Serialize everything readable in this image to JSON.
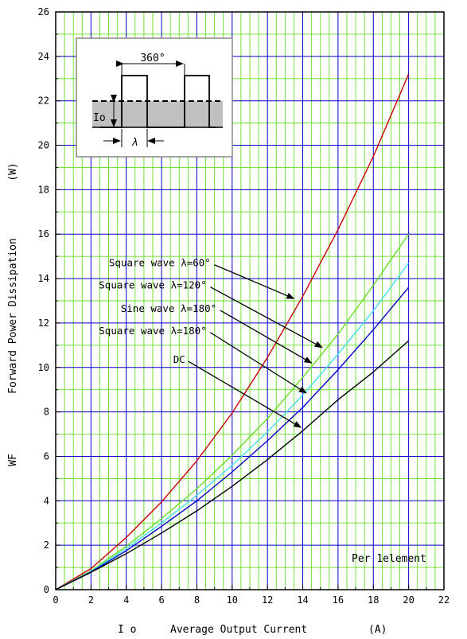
{
  "chart_data": {
    "type": "line",
    "xlabel_symbol": "I o",
    "xlabel": "Average Output Current",
    "xlabel_unit": "(A)",
    "ylabel_symbol": "WF",
    "ylabel": "Forward Power Dissipation",
    "ylabel_unit": "(W)",
    "xlim": [
      0,
      22
    ],
    "ylim": [
      0,
      26
    ],
    "xticks": [
      0,
      2,
      4,
      6,
      8,
      10,
      12,
      14,
      16,
      18,
      20,
      22
    ],
    "yticks": [
      0,
      2,
      4,
      6,
      8,
      10,
      12,
      14,
      16,
      18,
      20,
      22,
      24,
      26
    ],
    "grid": true,
    "colors": {
      "major_grid": "#0000cc",
      "minor_grid": "#66dd22"
    },
    "series": [
      {
        "name": "Square wave λ=60°",
        "color": "#cc0000",
        "x": [
          0,
          2,
          4,
          6,
          8,
          10,
          12,
          14,
          16,
          18,
          20
        ],
        "y": [
          0,
          0.95,
          2.35,
          3.95,
          5.8,
          7.95,
          10.45,
          13.2,
          16.2,
          19.5,
          23.2
        ]
      },
      {
        "name": "Square wave λ=120°",
        "color": "#66dd22",
        "x": [
          0,
          2,
          4,
          6,
          8,
          10,
          12,
          14,
          16,
          18,
          20
        ],
        "y": [
          0,
          0.85,
          1.95,
          3.2,
          4.55,
          6.05,
          7.7,
          9.55,
          11.5,
          13.7,
          16.0
        ]
      },
      {
        "name": "Sine wave λ=180°",
        "color": "#44e0f0",
        "x": [
          0,
          2,
          4,
          6,
          8,
          10,
          12,
          14,
          16,
          18,
          20
        ],
        "y": [
          0,
          0.82,
          1.85,
          3.0,
          4.25,
          5.6,
          7.1,
          8.75,
          10.6,
          12.55,
          14.7
        ]
      },
      {
        "name": "Square wave λ=180°",
        "color": "#0000cc",
        "x": [
          0,
          2,
          4,
          6,
          8,
          10,
          12,
          14,
          16,
          18,
          20
        ],
        "y": [
          0,
          0.8,
          1.75,
          2.85,
          4.0,
          5.3,
          6.7,
          8.2,
          9.9,
          11.7,
          13.6
        ]
      },
      {
        "name": "DC",
        "color": "#000000",
        "x": [
          0,
          2,
          4,
          6,
          8,
          10,
          12,
          14,
          16,
          18,
          20
        ],
        "y": [
          0,
          0.78,
          1.62,
          2.55,
          3.55,
          4.65,
          5.85,
          7.15,
          8.55,
          9.8,
          11.2
        ]
      }
    ],
    "annotations": [
      {
        "text": "Square wave λ=60°",
        "series": 0,
        "label_at": [
          5.9,
          14.55
        ],
        "arrow_to": [
          13.5,
          13.1
        ]
      },
      {
        "text": "Square wave λ=120°",
        "series": 1,
        "label_at": [
          5.5,
          13.55
        ],
        "arrow_to": [
          15.1,
          10.9
        ]
      },
      {
        "text": "Sine wave λ=180°",
        "series": 2,
        "label_at": [
          6.4,
          12.5
        ],
        "arrow_to": [
          14.5,
          10.2
        ]
      },
      {
        "text": "Square wave λ=180°",
        "series": 3,
        "label_at": [
          5.5,
          11.5
        ],
        "arrow_to": [
          14.2,
          8.85
        ]
      },
      {
        "text": "DC",
        "series": 4,
        "label_at": [
          7.0,
          10.2
        ],
        "arrow_to": [
          13.9,
          7.3
        ]
      }
    ],
    "note": "Per 1element",
    "inset": {
      "angle_label": "360°",
      "io_label": "Io",
      "lambda_label": "λ"
    }
  }
}
